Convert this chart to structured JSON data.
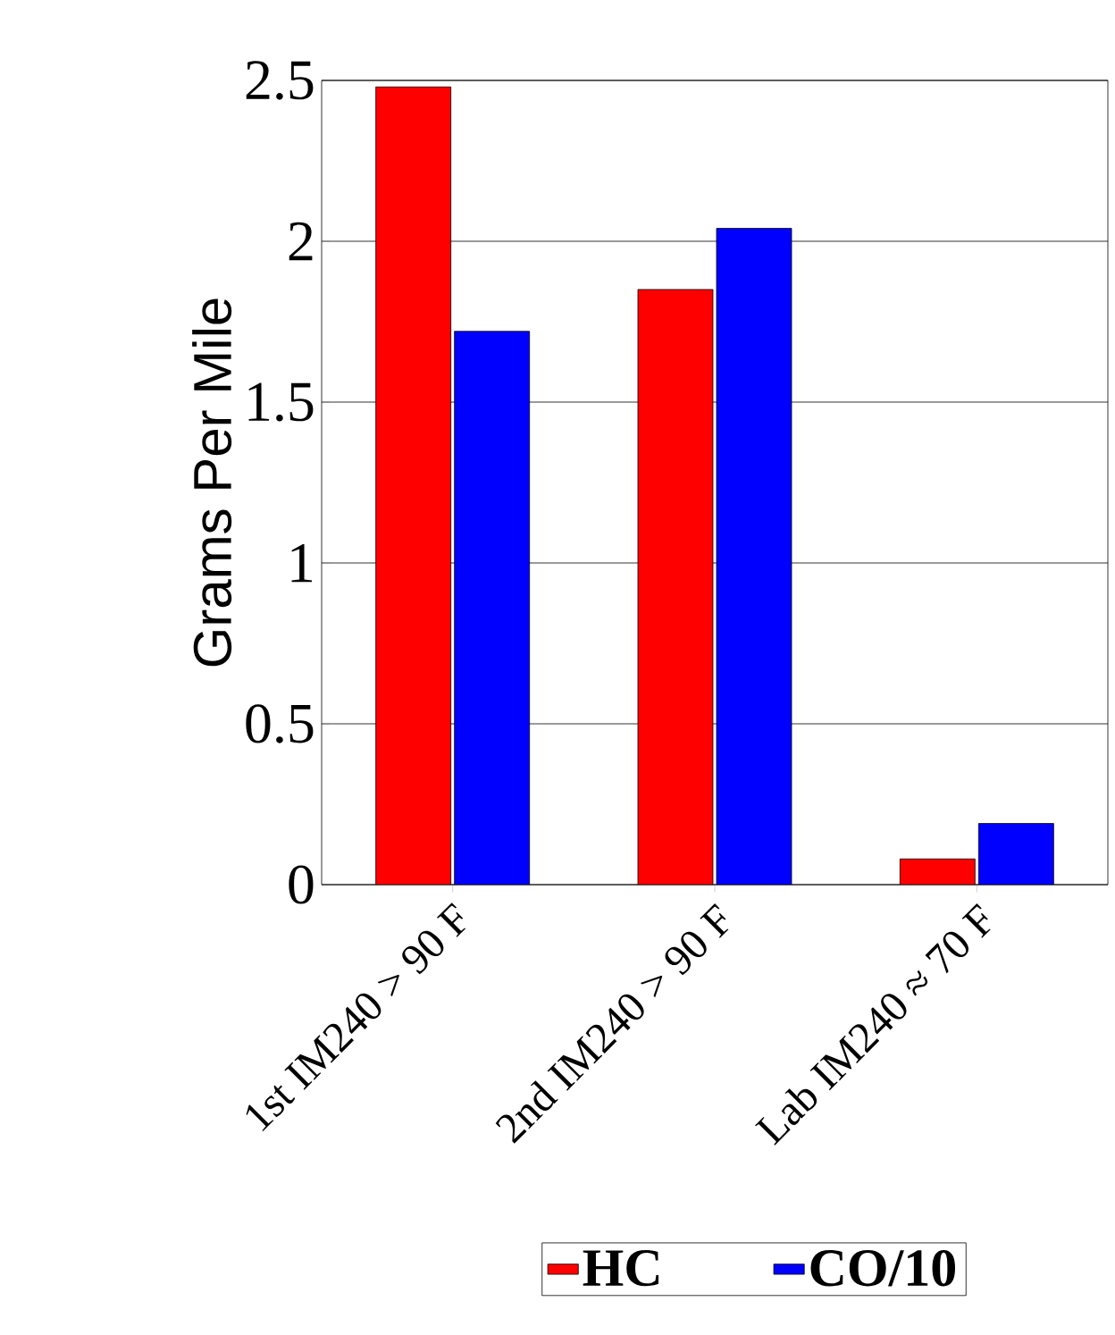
{
  "chart_data": {
    "type": "bar",
    "ylabel": "Grams Per Mile",
    "categories": [
      "1st IM240 > 90 F",
      "2nd IM240 > 90 F",
      "Lab IM240 ≈ 70 F"
    ],
    "series": [
      {
        "name": "HC",
        "color": "#ff0000",
        "values": [
          2.48,
          1.85,
          0.08
        ]
      },
      {
        "name": "CO/10",
        "color": "#0000ff",
        "values": [
          1.72,
          2.04,
          0.19
        ]
      }
    ],
    "ylim": [
      0,
      2.5
    ],
    "yticks": [
      0,
      0.5,
      1,
      1.5,
      2,
      2.5
    ],
    "grid": "y",
    "legend": "bottom"
  }
}
